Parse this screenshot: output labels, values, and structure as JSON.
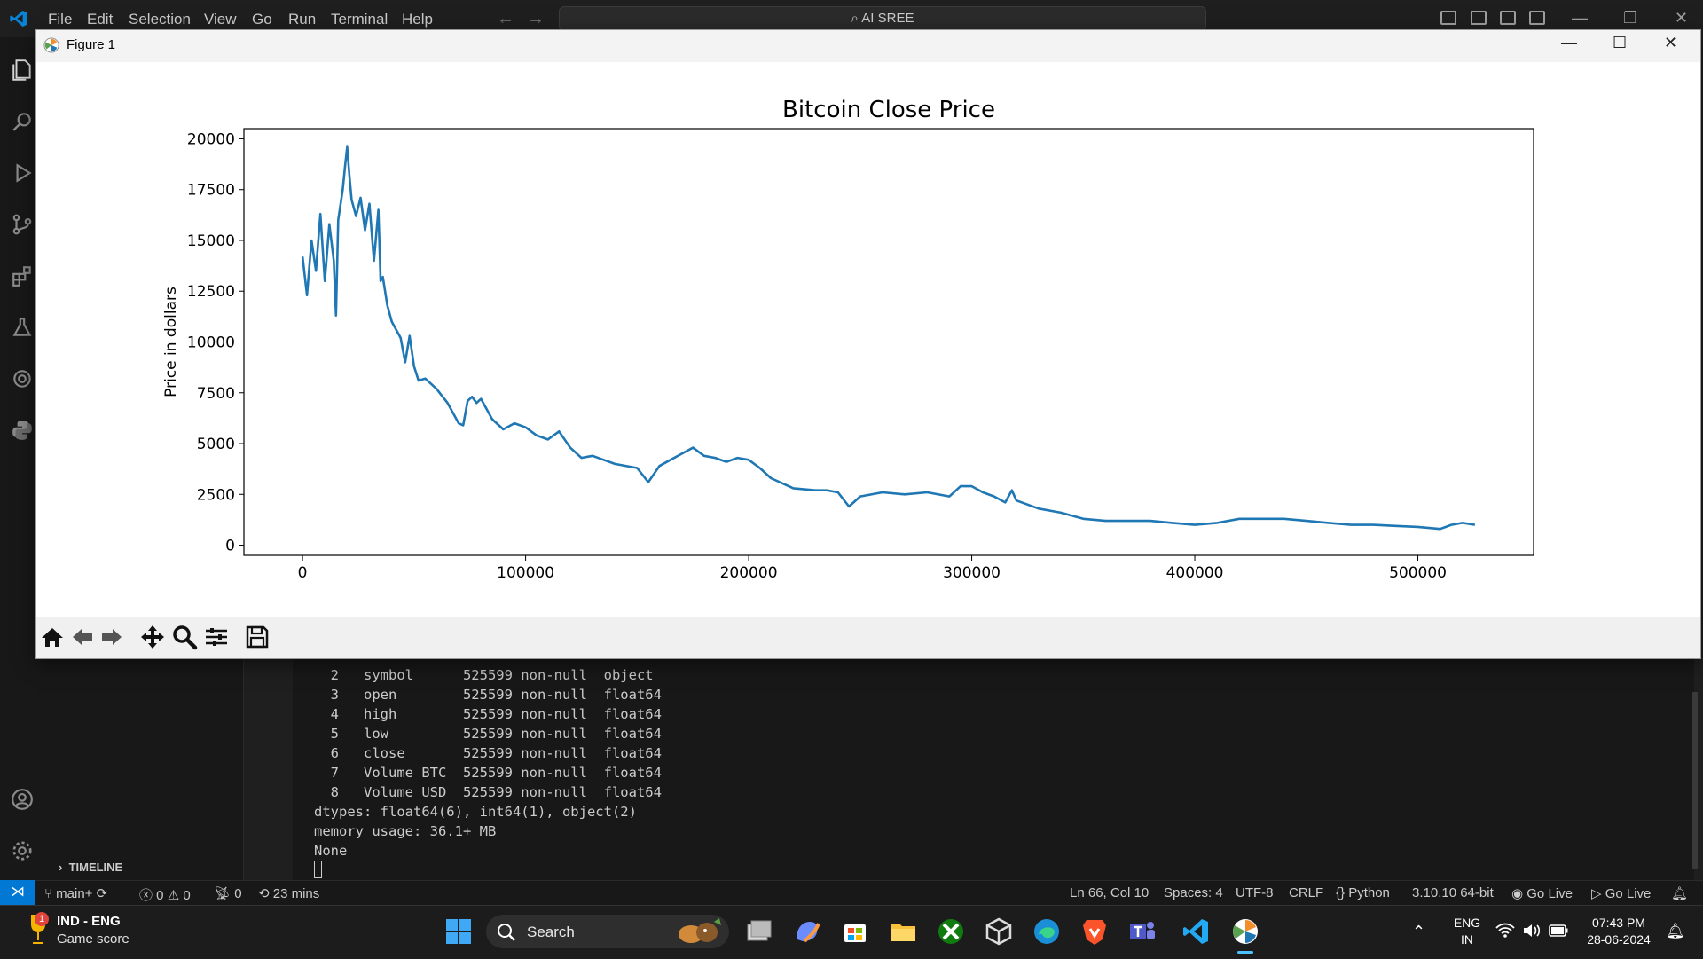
{
  "vscode": {
    "menu": [
      "File",
      "Edit",
      "Selection",
      "View",
      "Go",
      "Run",
      "Terminal",
      "Help"
    ],
    "command_center": "AI SREE",
    "sidebar": {
      "timeline_label": "TIMELINE"
    },
    "terminal_lines": [
      "  2   symbol      525599 non-null  object",
      "  3   open        525599 non-null  float64",
      "  4   high        525599 non-null  float64",
      "  5   low         525599 non-null  float64",
      "  6   close       525599 non-null  float64",
      "  7   Volume BTC  525599 non-null  float64",
      "  8   Volume USD  525599 non-null  float64",
      "dtypes: float64(6), int64(1), object(2)",
      "memory usage: 36.1+ MB",
      "None"
    ],
    "status": {
      "branch": "main+",
      "errors": "0",
      "warnings": "0",
      "ports": "0",
      "time": "23 mins",
      "position": "Ln 66, Col 10",
      "spaces": "Spaces: 4",
      "encoding": "UTF-8",
      "eol": "CRLF",
      "language": "Python",
      "interpreter": "3.10.10 64-bit",
      "go_live_1": "Go Live",
      "go_live_2": "Go Live"
    },
    "accent_color": "#0078d4"
  },
  "figure": {
    "window_title": "Figure 1",
    "toolbar_icons": [
      "home-icon",
      "back-arrow-icon",
      "forward-arrow-icon",
      "pan-icon",
      "zoom-icon",
      "configure-icon",
      "save-icon"
    ]
  },
  "chart_data": {
    "type": "line",
    "title": "Bitcoin Close Price",
    "xlabel": "",
    "ylabel": "Price in dollars",
    "xlim": [
      -26280,
      551880
    ],
    "ylim": [
      -500,
      20500
    ],
    "x_ticks": [
      0,
      100000,
      200000,
      300000,
      400000,
      500000
    ],
    "y_ticks": [
      0,
      2500,
      5000,
      7500,
      10000,
      12500,
      15000,
      17500,
      20000
    ],
    "x_tick_labels": [
      "0",
      "100000",
      "200000",
      "300000",
      "400000",
      "500000"
    ],
    "y_tick_labels": [
      "0",
      "2500",
      "5000",
      "7500",
      "10000",
      "12500",
      "15000",
      "17500",
      "20000"
    ],
    "grid": false,
    "line_color": "#1f77b4",
    "series": [
      {
        "x": [
          0,
          2000,
          4000,
          6000,
          8000,
          10000,
          12000,
          14000,
          15000,
          16000,
          18000,
          19000,
          20000,
          21000,
          22000,
          24000,
          26000,
          28000,
          30000,
          32000,
          34000,
          35000,
          36000,
          38000,
          40000,
          42000,
          44000,
          46000,
          48000,
          50000,
          52000,
          55000,
          60000,
          65000,
          70000,
          72000,
          74000,
          76000,
          78000,
          80000,
          85000,
          90000,
          95000,
          100000,
          105000,
          110000,
          115000,
          120000,
          125000,
          130000,
          140000,
          150000,
          155000,
          160000,
          165000,
          170000,
          175000,
          180000,
          185000,
          190000,
          195000,
          200000,
          205000,
          210000,
          220000,
          230000,
          235000,
          240000,
          245000,
          250000,
          260000,
          270000,
          280000,
          290000,
          295000,
          300000,
          305000,
          310000,
          315000,
          318000,
          320000,
          330000,
          340000,
          350000,
          360000,
          370000,
          380000,
          390000,
          400000,
          410000,
          420000,
          430000,
          440000,
          450000,
          460000,
          470000,
          480000,
          490000,
          500000,
          505000,
          510000,
          515000,
          520000,
          525599
        ],
        "y": [
          14200,
          12300,
          15000,
          13500,
          16300,
          13000,
          15800,
          14000,
          11300,
          16000,
          17500,
          18600,
          19600,
          18200,
          17000,
          16200,
          17100,
          15500,
          16800,
          14000,
          16500,
          13000,
          13200,
          11800,
          11000,
          10600,
          10200,
          9000,
          10300,
          8800,
          8100,
          8200,
          7700,
          7000,
          6000,
          5900,
          7100,
          7300,
          7000,
          7200,
          6200,
          5700,
          6000,
          5800,
          5400,
          5200,
          5600,
          4800,
          4300,
          4400,
          4000,
          3800,
          3100,
          3900,
          4200,
          4500,
          4800,
          4400,
          4300,
          4100,
          4300,
          4200,
          3800,
          3300,
          2800,
          2700,
          2700,
          2600,
          1900,
          2400,
          2600,
          2500,
          2600,
          2400,
          2900,
          2900,
          2600,
          2400,
          2100,
          2700,
          2200,
          1800,
          1600,
          1300,
          1200,
          1200,
          1200,
          1100,
          1000,
          1100,
          1300,
          1300,
          1300,
          1200,
          1100,
          1000,
          1000,
          950,
          900,
          850,
          800,
          1000,
          1100,
          1000
        ]
      }
    ]
  },
  "taskbar": {
    "weather_title": "IND - ENG",
    "weather_sub": "Game score",
    "weather_badge": "1",
    "search_label": "Search",
    "lang_top": "ENG",
    "lang_bottom": "IN",
    "clock_time": "07:43 PM",
    "clock_date": "28-06-2024"
  }
}
